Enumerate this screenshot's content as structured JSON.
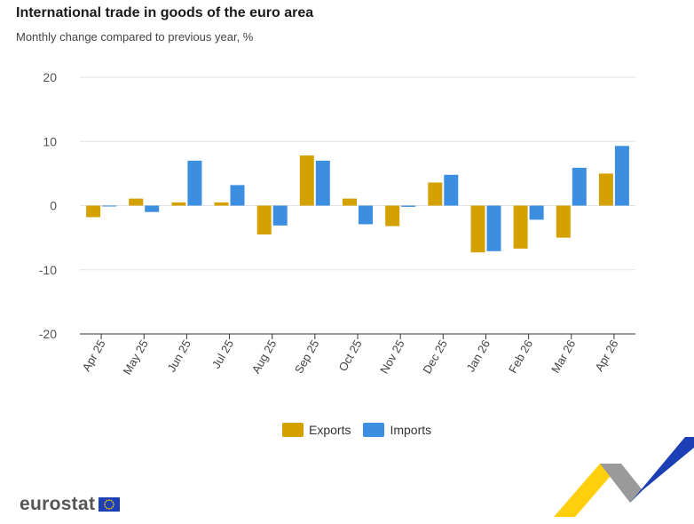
{
  "title": "International trade in goods of the euro area",
  "subtitle": "Monthly change compared to previous year, %",
  "brand": {
    "logo_text": "eurostat",
    "flag_icon": "eu-flag-icon",
    "decoration_icon": "eurostat-chevron-graphic",
    "colors": {
      "yellow": "#FFCC00",
      "blue": "#1C3FB5",
      "grey": "#9A9A9A"
    }
  },
  "legend": [
    {
      "label": "Exports",
      "color": "#D4A100"
    },
    {
      "label": "Imports",
      "color": "#3C8EE0"
    }
  ],
  "chart_data": {
    "type": "bar",
    "categories": [
      "Apr 25",
      "May 25",
      "Jun 25",
      "Jul 25",
      "Aug 25",
      "Sep 25",
      "Oct 25",
      "Nov 25",
      "Dec 25",
      "Jan 26",
      "Feb 26",
      "Mar 26",
      "Apr 26"
    ],
    "series": [
      {
        "name": "Exports",
        "color": "#D4A100",
        "values": [
          -1.8,
          1.1,
          0.5,
          0.5,
          -4.5,
          7.8,
          1.1,
          -3.2,
          3.6,
          -7.3,
          -6.7,
          -5.0,
          5.0
        ]
      },
      {
        "name": "Imports",
        "color": "#3C8EE0",
        "values": [
          -0.1,
          -1.0,
          7.0,
          3.2,
          -3.1,
          7.0,
          -2.9,
          -0.2,
          4.8,
          -7.1,
          -2.2,
          5.9,
          9.3
        ]
      }
    ],
    "yticks": [
      20,
      10,
      0,
      -10,
      -20
    ],
    "ylim": [
      -20,
      20
    ],
    "grid": true,
    "legend_position": "bottom"
  }
}
